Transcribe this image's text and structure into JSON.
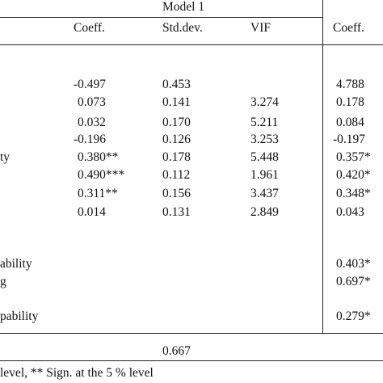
{
  "table": {
    "model_header": "Model 1",
    "col_headers": {
      "coeff": "Coeff.",
      "stddev": "Std.dev.",
      "vif": "VIF",
      "coeff2": "Coeff."
    },
    "row_labels": {
      "r5": "ty",
      "r9": "ability",
      "r10": "g",
      "r11": "pability"
    },
    "rows": [
      {
        "coeff": "-0.497",
        "stddev": "0.453",
        "vif": "",
        "coeff2": "4.788"
      },
      {
        "coeff": "0.073",
        "stddev": "0.141",
        "vif": "3.274",
        "coeff2": "0.178"
      },
      {
        "coeff": "0.032",
        "stddev": "0.170",
        "vif": "5.211",
        "coeff2": "0.084"
      },
      {
        "coeff": "-0.196",
        "stddev": "0.126",
        "vif": "3.253",
        "coeff2": "-0.197"
      },
      {
        "coeff": "0.380**",
        "stddev": "0.178",
        "vif": "5.448",
        "coeff2": "0.357*"
      },
      {
        "coeff": "0.490***",
        "stddev": "0.112",
        "vif": "1.961",
        "coeff2": "0.420*"
      },
      {
        "coeff": "0.311**",
        "stddev": "0.156",
        "vif": "3.437",
        "coeff2": "0.348*"
      },
      {
        "coeff": "0.014",
        "stddev": "0.131",
        "vif": "2.849",
        "coeff2": "0.043"
      }
    ],
    "extra_rows": [
      {
        "coeff2": "0.403*"
      },
      {
        "coeff2": "0.697*"
      },
      {
        "coeff2": "0.279*"
      }
    ],
    "bottom_value": "0.667",
    "footnote": "level, ** Sign. at the 5 % level"
  }
}
